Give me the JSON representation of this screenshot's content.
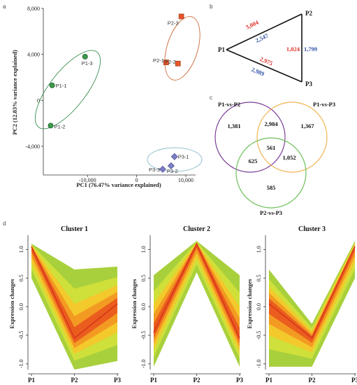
{
  "panels": {
    "a": "a",
    "b": "b",
    "c": "c",
    "d": "d"
  },
  "pca": {
    "xlabel": "PC1 (76.47% variance explained)",
    "ylabel": "PC2 (12.83% variance explained)",
    "xticks": [
      "-10,000",
      "0",
      "10,000"
    ],
    "yticks": [
      "8,000",
      "4,000",
      "0",
      "-4,000"
    ]
  },
  "network": {
    "nodes": {
      "p1": "P1",
      "p2": "P2",
      "p3": "P3"
    },
    "edges": {
      "p1p2_red": "3,004",
      "p1p2_blue": "2,547",
      "p1p3_red": "2,975",
      "p1p3_blue": "2,989",
      "p2p3_red": "1,024",
      "p2p3_blue": "1,799"
    },
    "colors": {
      "red": "#e0312a",
      "blue": "#3556a8"
    }
  },
  "venn": {
    "sets": {
      "a": "P1-vs-P2",
      "b": "P1-vs-P3",
      "c": "P2-vs-P3"
    },
    "counts": {
      "a_only": "1,381",
      "ab": "2,984",
      "b_only": "1,367",
      "abc": "561",
      "ac": "625",
      "bc": "1,052",
      "c_only": "585"
    },
    "colors": {
      "a": "#7b3f98",
      "b": "#f2b553",
      "c": "#6cbf5a"
    }
  },
  "clusters": {
    "ylabel": "Expression changes",
    "yticks": [
      "1.0",
      "0.5",
      "0.0",
      "-0.5",
      "-1.0"
    ],
    "xticks": [
      "P1",
      "P2",
      "P3"
    ],
    "titles": [
      "Cluster 1",
      "Cluster 2",
      "Cluster 3"
    ]
  },
  "chart_data": [
    {
      "type": "scatter",
      "title": "",
      "xlabel": "PC1 (76.47% variance explained)",
      "ylabel": "PC2 (12.83% variance explained)",
      "xlim": [
        -19000,
        12000
      ],
      "ylim": [
        -6500,
        8000
      ],
      "series": [
        {
          "name": "P1",
          "color": "#3a9a4a",
          "marker": "circle",
          "points": [
            {
              "label": "P1-1",
              "x": -17200,
              "y": 1300
            },
            {
              "label": "P1-2",
              "x": -17500,
              "y": -2200
            },
            {
              "label": "P1-3",
              "x": -10500,
              "y": 3800
            }
          ]
        },
        {
          "name": "P2",
          "color": "#e8552b",
          "marker": "square",
          "points": [
            {
              "label": "P2-1",
              "x": 6000,
              "y": 3300
            },
            {
              "label": "P2-2",
              "x": 8400,
              "y": 3200
            },
            {
              "label": "P2-3",
              "x": 9100,
              "y": 7300
            }
          ]
        },
        {
          "name": "P3",
          "color": "#7c7fc7",
          "marker": "diamond",
          "points": [
            {
              "label": "P3-1",
              "x": 7700,
              "y": -4900
            },
            {
              "label": "P3-2",
              "x": 7000,
              "y": -5700
            },
            {
              "label": "P3-3",
              "x": 5300,
              "y": -6000
            }
          ]
        }
      ]
    },
    {
      "type": "line",
      "title": "Cluster 1",
      "xlabel": "",
      "ylabel": "Expression changes",
      "categories": [
        "P1",
        "P2",
        "P3"
      ],
      "ylim": [
        -1.1,
        1.2
      ],
      "center": [
        1.05,
        -0.55,
        0.05
      ],
      "upper": [
        1.1,
        0.65,
        0.7
      ],
      "lower": [
        0.5,
        -1.1,
        -0.95
      ]
    },
    {
      "type": "line",
      "title": "Cluster 2",
      "xlabel": "",
      "ylabel": "Expression changes",
      "categories": [
        "P1",
        "P2",
        "P3"
      ],
      "ylim": [
        -1.1,
        1.2
      ],
      "center": [
        -0.45,
        1.1,
        -0.55
      ],
      "upper": [
        0.55,
        1.15,
        0.55
      ],
      "lower": [
        -1.05,
        0.6,
        -1.05
      ]
    },
    {
      "type": "line",
      "title": "Cluster 3",
      "xlabel": "",
      "ylabel": "Expression changes",
      "categories": [
        "P1",
        "P2",
        "P3"
      ],
      "ylim": [
        -1.1,
        1.2
      ],
      "center": [
        0.05,
        -0.55,
        1.05
      ],
      "upper": [
        0.65,
        -0.3,
        1.15
      ],
      "lower": [
        -1.05,
        -1.05,
        0.5
      ]
    }
  ]
}
